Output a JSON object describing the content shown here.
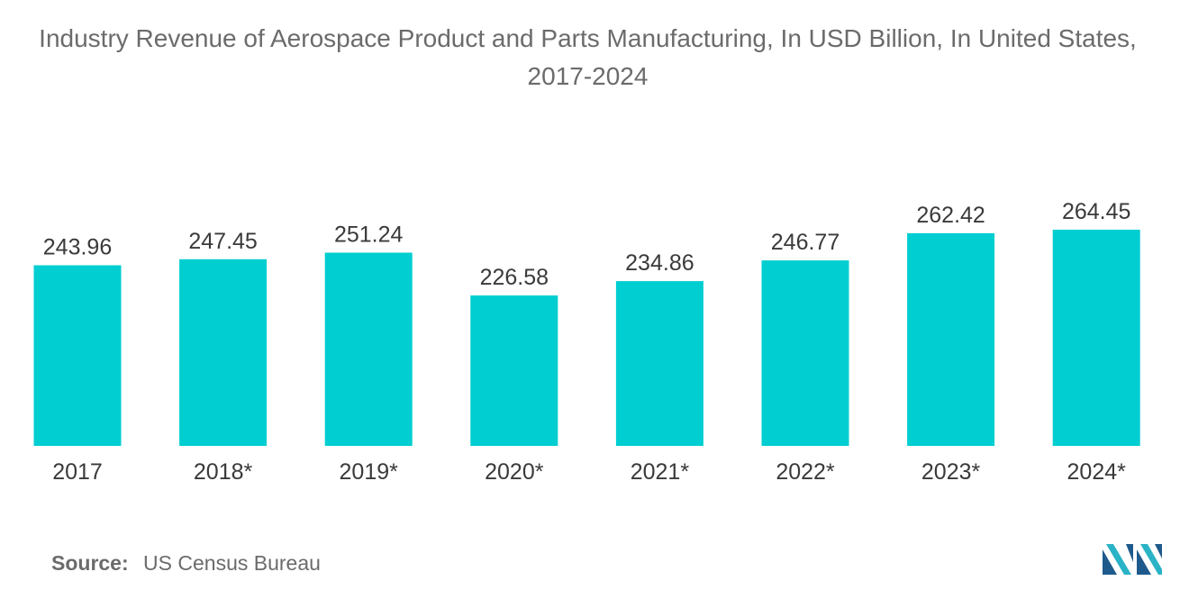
{
  "chart_data": {
    "type": "bar",
    "title": "Industry Revenue of Aerospace Product and Parts Manufacturing, In USD Billion, In United States, 2017-2024",
    "categories": [
      "2017",
      "2018*",
      "2019*",
      "2020*",
      "2021*",
      "2022*",
      "2023*",
      "2024*"
    ],
    "values": [
      243.96,
      247.45,
      251.24,
      226.58,
      234.86,
      246.77,
      262.42,
      264.45
    ],
    "value_labels": [
      "243.96",
      "247.45",
      "251.24",
      "226.58",
      "234.86",
      "246.77",
      "262.42",
      "264.45"
    ],
    "xlabel": "",
    "ylabel": "",
    "ylim": [
      0,
      264.45
    ],
    "grid": false,
    "bar_color": "#00ced1"
  },
  "source": {
    "label": "Source:",
    "text": "US Census Bureau"
  },
  "logo": {
    "icon": "mordor-intelligence-logo-icon",
    "colors": [
      "#1e5a8c",
      "#2ab3c6"
    ]
  }
}
